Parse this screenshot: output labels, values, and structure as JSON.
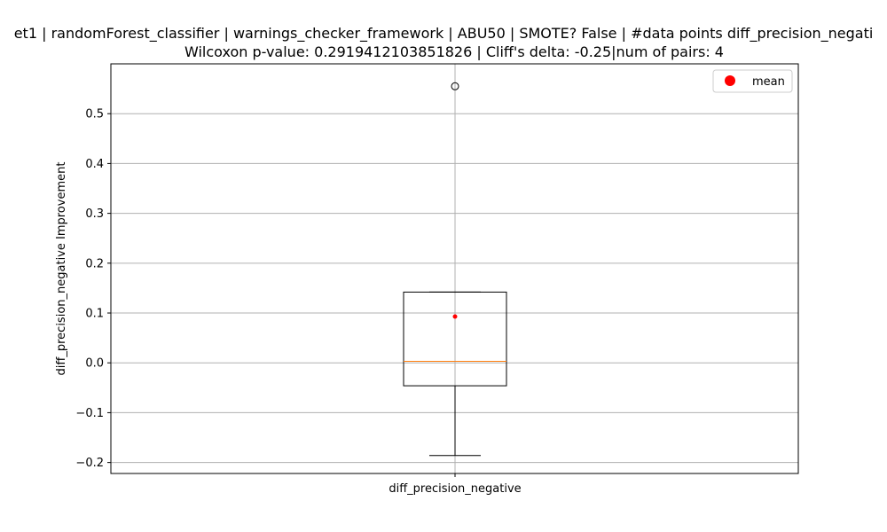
{
  "chart_data": {
    "type": "box",
    "title_line1": "et1 | randomForest_classifier | warnings_checker_framework | ABU50 | SMOTE? False | #data points diff_precision_negati",
    "title_line2": "Wilcoxon p-value: 0.2919412103851826 | Cliff's delta: -0.25|num of pairs: 4",
    "ylabel": "diff_precision_negative Improvement",
    "categories": [
      "diff_precision_negative"
    ],
    "ylim": [
      -0.222,
      0.6
    ],
    "yticks": [
      -0.2,
      -0.1,
      0.0,
      0.1,
      0.2,
      0.3,
      0.4,
      0.5
    ],
    "ytick_labels": [
      "−0.2",
      "−0.1",
      "0.0",
      "0.1",
      "0.2",
      "0.3",
      "0.4",
      "0.5"
    ],
    "grid": true,
    "legend": {
      "position": "top-right",
      "entries": [
        {
          "label": "mean",
          "marker": "circle",
          "color": "#ff0000"
        }
      ]
    },
    "box": {
      "whisker_low": -0.186,
      "q1": -0.046,
      "median": 0.003,
      "q3": 0.142,
      "whisker_high": 0.142,
      "mean": 0.093,
      "outliers": [
        0.555
      ]
    },
    "colors": {
      "median": "#ff7f0e",
      "mean": "#ff0000",
      "grid": "#b0b0b0"
    }
  }
}
